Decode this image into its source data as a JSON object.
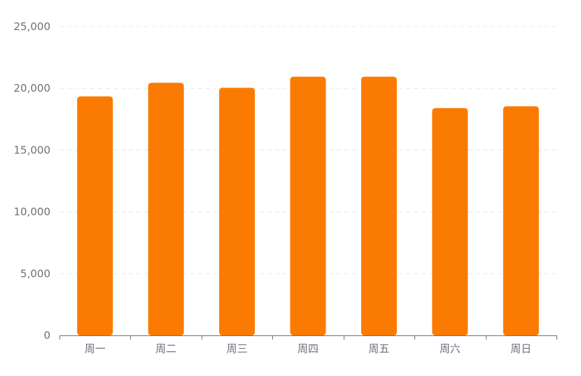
{
  "chart_data": {
    "type": "bar",
    "categories": [
      "周一",
      "周二",
      "周三",
      "周四",
      "周五",
      "周六",
      "周日"
    ],
    "series": [
      {
        "values": [
          19350,
          20450,
          20050,
          20950,
          20950,
          18400,
          18550
        ]
      }
    ],
    "ylim": [
      0,
      25000
    ],
    "yticks": [
      0,
      5000,
      10000,
      15000,
      20000,
      25000
    ],
    "ytick_labels": [
      "0",
      "5,000",
      "10,000",
      "15,000",
      "20,000",
      "25,000"
    ],
    "grid": true,
    "bar_color": "#fb7b02",
    "legend": "none"
  }
}
